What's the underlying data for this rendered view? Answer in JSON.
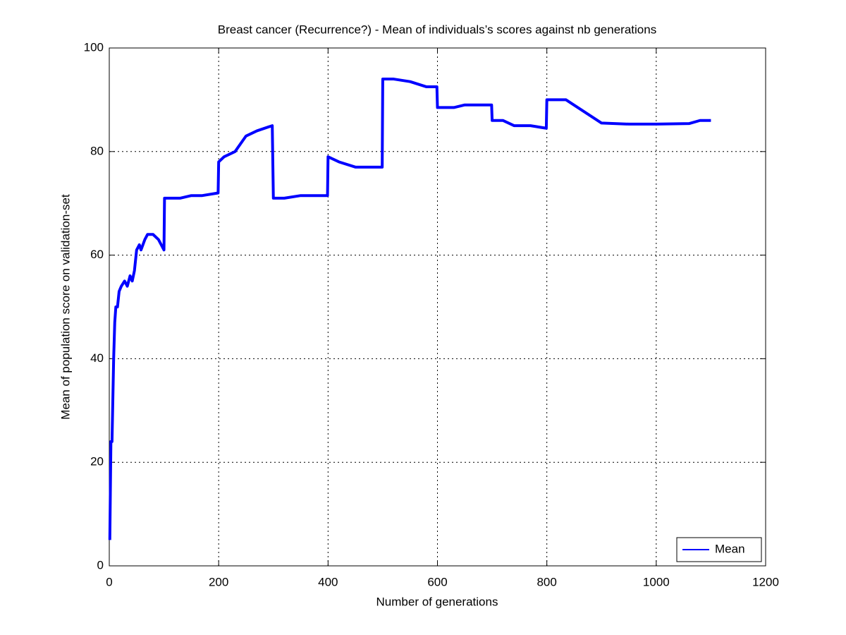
{
  "chart_data": {
    "type": "line",
    "title": "Breast cancer (Recurrence?) - Mean of individuals’s scores against nb generations",
    "x_label": "Number of generations",
    "y_label": "Mean of population score on validation-set",
    "xlim": [
      0,
      1200
    ],
    "xticks": [
      0,
      200,
      400,
      600,
      800,
      1000,
      1200
    ],
    "ylim": [
      0,
      100
    ],
    "yticks": [
      0,
      20,
      40,
      60,
      80,
      100
    ],
    "grid": true,
    "legend": "lower right",
    "x": [
      1,
      3,
      5,
      8,
      10,
      12,
      15,
      18,
      22,
      28,
      33,
      38,
      42,
      46,
      50,
      55,
      58,
      65,
      70,
      80,
      90,
      100,
      101,
      110,
      130,
      150,
      170,
      199,
      200,
      210,
      230,
      250,
      270,
      298,
      300,
      320,
      350,
      399,
      400,
      420,
      450,
      499,
      500,
      520,
      550,
      580,
      599,
      600,
      630,
      650,
      699,
      700,
      720,
      740,
      770,
      799,
      800,
      835,
      900,
      950,
      1000,
      1060,
      1080,
      1100
    ],
    "series": [
      {
        "name": "Mean",
        "color": "#0000ff",
        "values": [
          5,
          24,
          24,
          40,
          47,
          50,
          50,
          53,
          54,
          55,
          54,
          56,
          55,
          57,
          61,
          62,
          61,
          63,
          64,
          64,
          63,
          61,
          71,
          71,
          71,
          71.5,
          71.5,
          72,
          78,
          79,
          80,
          83,
          84,
          85,
          71,
          71,
          71.5,
          71.5,
          79,
          78,
          77,
          77,
          94,
          94,
          93.5,
          92.5,
          92.5,
          88.5,
          88.5,
          89,
          89,
          86,
          86,
          85,
          85,
          84.5,
          90,
          90,
          85.5,
          85.3,
          85.3,
          85.4,
          86,
          86
        ]
      }
    ]
  }
}
